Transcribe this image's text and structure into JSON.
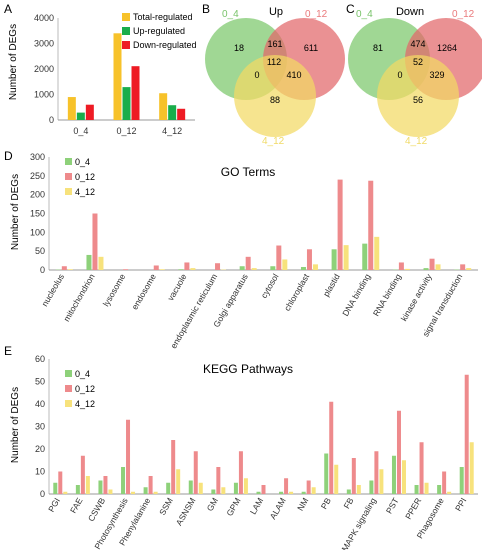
{
  "panels": {
    "A": {
      "letter": "A"
    },
    "B": {
      "letter": "B",
      "title": "Up"
    },
    "C": {
      "letter": "C",
      "title": "Down"
    },
    "D": {
      "letter": "D",
      "title": "GO Terms"
    },
    "E": {
      "letter": "E",
      "title": "KEGG Pathways"
    }
  },
  "colors": {
    "total": "#f7c22a",
    "up": "#19ad4b",
    "down": "#ee1b24",
    "s0_4": "#8ed17a",
    "s0_12": "#ee8a8c",
    "s4_12": "#f7e27c",
    "venn_green": "#7cc86b",
    "venn_red": "#e2666a",
    "venn_yellow": "#f2da64",
    "venn_green_label": "#79c36a",
    "venn_red_label": "#ea7a7c",
    "venn_yellow_label": "#f0da66"
  },
  "chart_data": [
    {
      "id": "A",
      "type": "bar",
      "ylabel": "Number of DEGs",
      "ylim": [
        0,
        4000
      ],
      "yticks": [
        "0",
        "1000",
        "2000",
        "3000",
        "4000"
      ],
      "categories": [
        "0_4",
        "0_12",
        "4_12"
      ],
      "legend_position": "top-right",
      "series": [
        {
          "name": "Total-regulated",
          "values": [
            900,
            3400,
            1050
          ]
        },
        {
          "name": "Up-regulated",
          "values": [
            290,
            1290,
            580
          ]
        },
        {
          "name": "Down-regulated",
          "values": [
            600,
            2110,
            440
          ]
        }
      ]
    },
    {
      "id": "B",
      "type": "venn",
      "sets": [
        "0_4",
        "0_12",
        "4_12"
      ],
      "regions": {
        "only_0_4": "18",
        "only_0_12": "611",
        "only_4_12": "88",
        "0_4_and_0_12": "161",
        "0_4_and_4_12": "0",
        "0_12_and_4_12": "410",
        "all": "112"
      }
    },
    {
      "id": "C",
      "type": "venn",
      "sets": [
        "0_4",
        "0_12",
        "4_12"
      ],
      "regions": {
        "only_0_4": "81",
        "only_0_12": "1264",
        "only_4_12": "56",
        "0_4_and_0_12": "474",
        "0_4_and_4_12": "0",
        "0_12_and_4_12": "329",
        "all": "52"
      }
    },
    {
      "id": "D",
      "type": "bar",
      "ylabel": "Number of DEGs",
      "ylim": [
        0,
        300
      ],
      "yticks": [
        "0",
        "50",
        "100",
        "150",
        "200",
        "250",
        "300"
      ],
      "legend_position": "top-left",
      "categories": [
        "nucleolus",
        "mitochondrion",
        "lysosome",
        "endosome",
        "vacuole",
        "endoplasmic reticulum",
        "Golgi apparatus",
        "cytosol",
        "chloroplast",
        "plastid",
        "DNA binding",
        "RNA binding",
        "kinase activity",
        "signal transduction"
      ],
      "series": [
        {
          "name": "0_4",
          "values": [
            1,
            40,
            0,
            0,
            2,
            0,
            10,
            10,
            8,
            55,
            70,
            1,
            5,
            1
          ]
        },
        {
          "name": "0_12",
          "values": [
            10,
            150,
            2,
            12,
            20,
            18,
            35,
            65,
            55,
            240,
            237,
            20,
            30,
            15
          ]
        },
        {
          "name": "4_12",
          "values": [
            2,
            35,
            0,
            2,
            5,
            1,
            5,
            28,
            15,
            66,
            88,
            3,
            15,
            5
          ]
        }
      ]
    },
    {
      "id": "E",
      "type": "bar",
      "ylabel": "Number of DEGs",
      "ylim": [
        0,
        60
      ],
      "yticks": [
        "0",
        "10",
        "20",
        "30",
        "40",
        "50",
        "60"
      ],
      "legend_position": "top-left",
      "categories": [
        "PGI",
        "FAE",
        "CSWB",
        "Photosynthesis",
        "Phenylalanine",
        "SSM",
        "ASNSM",
        "GM",
        "GPM",
        "LAM",
        "ALAM",
        "NM",
        "PB",
        "FB",
        "MAPK signaling",
        "PST",
        "PPER",
        "Phagosome",
        "PPI"
      ],
      "series": [
        {
          "name": "0_4",
          "values": [
            5,
            4,
            6,
            12,
            3,
            5,
            6,
            2,
            5,
            1,
            1,
            1,
            18,
            2,
            6,
            17,
            4,
            4,
            12
          ]
        },
        {
          "name": "0_12",
          "values": [
            10,
            17,
            8,
            33,
            8,
            24,
            19,
            12,
            19,
            4,
            7,
            6,
            41,
            16,
            19,
            37,
            23,
            10,
            53
          ]
        },
        {
          "name": "4_12",
          "values": [
            1,
            8,
            2,
            1,
            1,
            11,
            5,
            3,
            7,
            0,
            1,
            3,
            13,
            4,
            11,
            15,
            5,
            1,
            23
          ]
        }
      ]
    }
  ]
}
